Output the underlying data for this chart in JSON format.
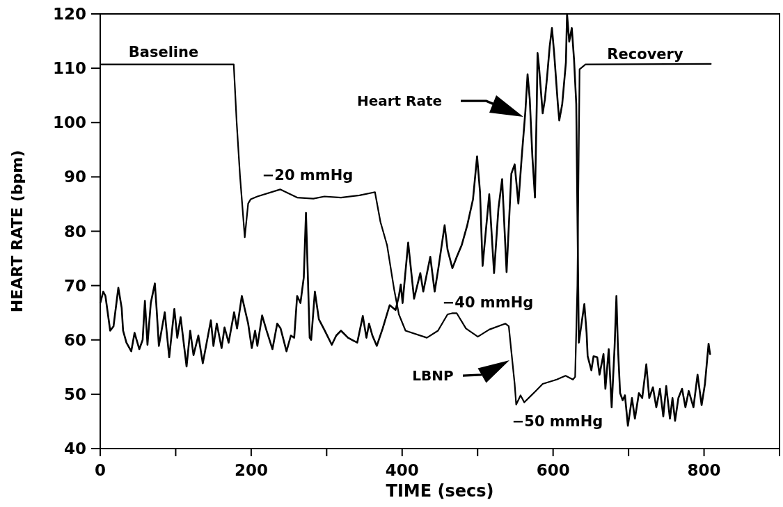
{
  "chart_data": {
    "type": "line",
    "xlabel": "TIME (secs)",
    "ylabel": "HEART RATE (bpm)",
    "legend": "center",
    "xlim": [
      0,
      900
    ],
    "xticks": [
      0,
      {
        "value": 100,
        "label": null
      },
      200,
      {
        "value": 300,
        "label": null
      },
      400,
      {
        "value": 500,
        "label": null
      },
      600,
      {
        "value": 700,
        "label": null
      },
      800,
      {
        "value": 900,
        "label": null
      }
    ],
    "ylim": [
      40,
      120
    ],
    "yticks": [
      40,
      50,
      60,
      70,
      80,
      90,
      100,
      110,
      120
    ],
    "series": [
      {
        "name": "Heart Rate",
        "color": "#000000",
        "x": [
          0.1,
          4,
          6.9,
          13.2,
          17.6,
          24,
          28.4,
          30.3,
          34.7,
          41.1,
          45.5,
          51.8,
          56.2,
          59.2,
          62.6,
          67,
          72.4,
          74.8,
          77.7,
          85.5,
          91.4,
          98.2,
          102.1,
          106.5,
          114.4,
          119.2,
          123.6,
          130,
          135.9,
          146.6,
          150,
          154.4,
          160.8,
          164.7,
          170.1,
          177.4,
          181.3,
          187.6,
          191.5,
          196,
          200.8,
          205.2,
          208.2,
          214.5,
          220.4,
          228.2,
          234.5,
          239,
          246.8,
          252.6,
          257,
          260.9,
          265.3,
          269.7,
          272.6,
          277.5,
          279.5,
          284.4,
          289.7,
          297.5,
          306.8,
          312.7,
          319,
          328.3,
          340.5,
          347.9,
          352.7,
          356.2,
          360.6,
          366.4,
          374.2,
          383.5,
          391.3,
          395.7,
          398.2,
          400.6,
          408,
          415.8,
          424.1,
          428,
          437.3,
          443.1,
          448,
          456.3,
          460.2,
          466.6,
          472.4,
          478.8,
          486.1,
          493.9,
          499.3,
          503.2,
          506.6,
          515.4,
          521.8,
          527.6,
          532.5,
          538.4,
          544.7,
          549.1,
          554,
          558.4,
          563.3,
          566.2,
          569.1,
          572.6,
          576,
          578.4,
          579.4,
          581.4,
          586.2,
          589.2,
          592.1,
          595.5,
          598.5,
          601.4,
          606.3,
          608.2,
          612.1,
          617,
          618.5,
          621.4,
          624.8,
          627.8,
          630.7,
          634.1,
          641.4,
          644.4,
          645.8,
          650.7,
          653.6,
          658.5,
          661.5,
          666.8,
          669.3,
          673.7,
          677.6,
          681.5,
          683.9,
          685.9,
          688.8,
          692.2,
          695.2,
          699.1,
          704.5,
          708.4,
          713.7,
          718.1,
          723.5,
          727.4,
          732.3,
          736.7,
          741.6,
          746,
          749.9,
          754.8,
          758.2,
          761.6,
          766,
          770.9,
          775.3,
          779.7,
          786,
          791.4,
          796.8,
          801.2,
          806,
          808
        ],
        "values": [
          66.8,
          68.9,
          68.1,
          61.7,
          62.5,
          69.6,
          65.9,
          61.7,
          59.5,
          57.9,
          61.3,
          58.3,
          60.0,
          67.2,
          59.1,
          66.8,
          70.4,
          65.5,
          58.9,
          65.1,
          56.8,
          65.7,
          60.4,
          64.2,
          55.1,
          61.7,
          57.2,
          60.8,
          55.7,
          63.6,
          58.9,
          63.0,
          58.5,
          62.3,
          59.5,
          65.1,
          62.1,
          68.1,
          65.7,
          63.0,
          58.5,
          61.7,
          58.9,
          64.5,
          61.7,
          58.3,
          63.0,
          62.1,
          57.9,
          60.8,
          60.4,
          68.1,
          66.8,
          71.5,
          83.4,
          60.4,
          60.0,
          68.9,
          63.8,
          61.7,
          59.1,
          60.8,
          61.7,
          60.4,
          59.5,
          64.4,
          60.4,
          63.0,
          60.8,
          58.9,
          62.1,
          66.4,
          65.5,
          68.1,
          70.2,
          66.8,
          77.9,
          67.6,
          72.3,
          68.9,
          75.3,
          68.9,
          73.2,
          81.1,
          76.6,
          73.2,
          75.3,
          77.4,
          81.0,
          85.9,
          93.8,
          87.2,
          73.6,
          86.8,
          72.3,
          84.2,
          89.6,
          72.5,
          90.6,
          92.3,
          85.1,
          93.6,
          102.1,
          108.9,
          104.3,
          93.6,
          86.2,
          103.4,
          112.8,
          110.2,
          101.7,
          104.3,
          108.5,
          114.0,
          117.4,
          112.8,
          103.4,
          100.4,
          103.4,
          111.1,
          120.0,
          114.9,
          117.4,
          111.5,
          103.4,
          59.5,
          66.6,
          61.3,
          57.0,
          54.4,
          57.0,
          56.8,
          53.6,
          57.4,
          51.0,
          58.3,
          47.6,
          58.7,
          68.1,
          58.7,
          50.2,
          48.9,
          49.8,
          44.2,
          49.3,
          45.5,
          50.2,
          49.3,
          55.5,
          49.3,
          51.3,
          47.6,
          51.0,
          45.9,
          51.5,
          45.5,
          49.3,
          45.1,
          49.3,
          51.0,
          47.6,
          50.6,
          47.6,
          53.6,
          48.0,
          51.9,
          59.3,
          57.4
        ]
      },
      {
        "name": "LBNP",
        "color": "#000000",
        "x": [
          0,
          176.9,
          180.8,
          185.2,
          191.5,
          196,
          199.4,
          208.2,
          238.4,
          260.9,
          282.4,
          297,
          319,
          343.5,
          364,
          371.3,
          380.1,
          389.4,
          395.7,
          404.5,
          432.8,
          447.5,
          460.2,
          466.1,
          472.4,
          484.6,
          500.3,
          515.4,
          536.9,
          541.3,
          549.1,
          551.1,
          556.9,
          561.8,
          577,
          586.2,
          604.8,
          616.5,
          626.3,
          629.2,
          632.2,
          635.1,
          642.9,
          809
        ],
        "values": [
          110.7,
          110.7,
          100.0,
          90.2,
          78.9,
          85.1,
          85.9,
          86.4,
          87.7,
          86.2,
          86.0,
          86.4,
          86.2,
          86.6,
          87.2,
          81.7,
          77.4,
          69.3,
          64.7,
          61.7,
          60.4,
          61.7,
          64.7,
          64.9,
          64.9,
          62.1,
          60.6,
          61.9,
          63.0,
          62.5,
          51.9,
          48.1,
          49.8,
          48.5,
          50.6,
          51.9,
          52.7,
          53.4,
          52.7,
          53.2,
          70.0,
          109.8,
          110.7,
          110.8
        ]
      }
    ],
    "annotations": [
      "Baseline",
      "−20 mmHg",
      "−40 mmHg",
      "−50 mmHg",
      "Recovery"
    ]
  }
}
